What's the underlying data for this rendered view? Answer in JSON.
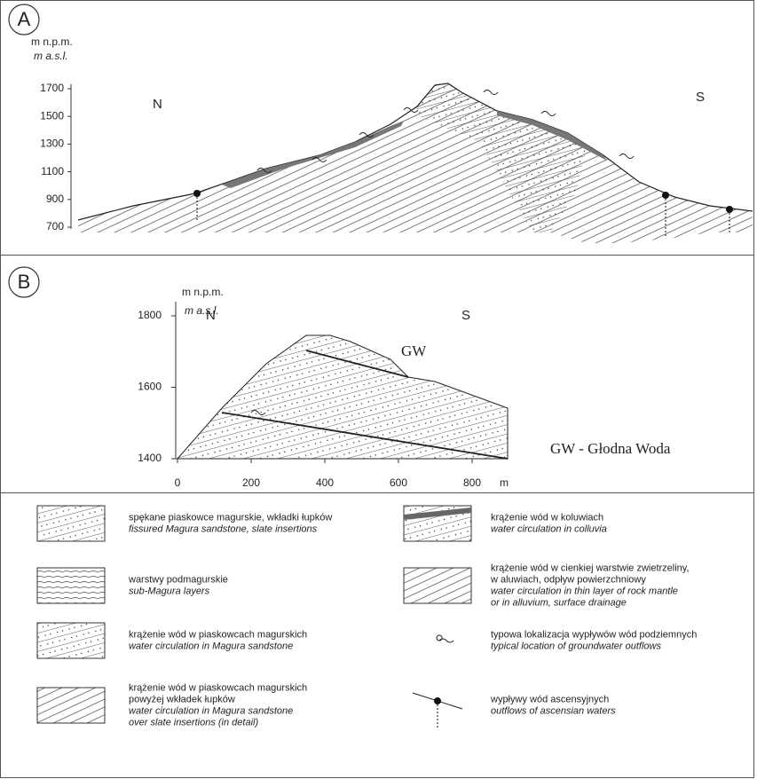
{
  "panel_a": {
    "label": "A",
    "unit_pl": "m n.p.m.",
    "unit_en": "m a.s.l.",
    "yticks": [
      1700,
      1500,
      1300,
      1100,
      900,
      700
    ],
    "north": "N",
    "south": "S"
  },
  "panel_b": {
    "label": "B",
    "unit_pl": "m n.p.m.",
    "unit_en": "m a.s.l.",
    "yticks": [
      1800,
      1600,
      1400
    ],
    "xticks": [
      0,
      200,
      400,
      600,
      800
    ],
    "x_unit": "m",
    "north": "N",
    "south": "S",
    "marker": "GW",
    "note": "GW - Głodna Woda"
  },
  "legend": {
    "items": [
      {
        "pl": [
          "spękane piaskowce magurskie, wkładki łupków"
        ],
        "en": [
          "fissured Magura sandstone, slate insertions"
        ]
      },
      {
        "pl": [
          "warstwy podmagurskie"
        ],
        "en": [
          "sub-Magura layers"
        ]
      },
      {
        "pl": [
          "krążenie wód w piaskowcach magurskich"
        ],
        "en": [
          "water circulation in Magura sandstone"
        ]
      },
      {
        "pl": [
          "krążenie wód w piaskowcach magurskich",
          "powyżej wkładek łupków"
        ],
        "en": [
          "water circulation in Magura sandstone",
          "over slate insertions (in detail)"
        ]
      },
      {
        "pl": [
          "krążenie wód w koluwiach"
        ],
        "en": [
          "water circulation in colluvia"
        ]
      },
      {
        "pl": [
          "krążenie wód w cienkiej warstwie zwietrzeliny,",
          "w aluwiach, odpływ powierzchniowy"
        ],
        "en": [
          "water circulation in thin layer of rock mantle",
          "or in alluvium, surface drainage"
        ]
      },
      {
        "pl": [
          "typowa lokalizacja wypływów wód podziemnych"
        ],
        "en": [
          "typical location of groundwater outflows"
        ]
      },
      {
        "pl": [
          "wypływy wód ascensyjnych"
        ],
        "en": [
          "outflows of ascensian waters"
        ]
      }
    ]
  }
}
